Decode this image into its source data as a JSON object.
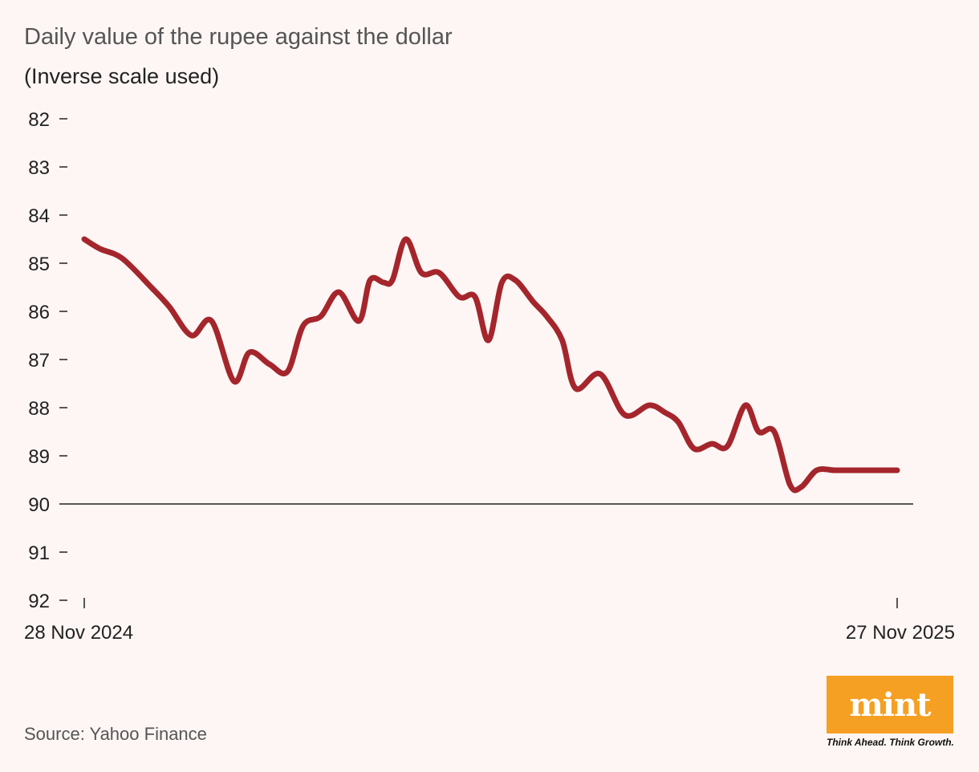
{
  "title": "Daily value of the rupee against the dollar",
  "subtitle": "(Inverse scale used)",
  "source": "Source: Yahoo Finance",
  "logo": {
    "word": "mint",
    "tagline": "Think Ahead. Think Growth."
  },
  "colors": {
    "line": "#a4262c",
    "background": "#fdf6f4",
    "logo": "#f5a023"
  },
  "chart_data": {
    "type": "line",
    "title": "Daily value of the rupee against the dollar",
    "ylabel": "",
    "xlabel": "",
    "y_inverted": true,
    "ylim": [
      82,
      92
    ],
    "yticks": [
      82,
      83,
      84,
      85,
      86,
      87,
      88,
      89,
      90,
      91,
      92
    ],
    "x_tick_labels": [
      "28 Nov 2024",
      "27 Nov 2025"
    ],
    "x_range": [
      "2024-11-28",
      "2025-11-27"
    ],
    "baseline": 90,
    "series": [
      {
        "x": [
          "2024-11-28",
          "2024-12-05",
          "2024-12-15",
          "2024-12-28",
          "2025-01-05",
          "2025-01-15",
          "2025-01-24",
          "2025-02-03",
          "2025-02-10",
          "2025-02-19",
          "2025-02-27",
          "2025-03-06",
          "2025-03-14",
          "2025-03-22",
          "2025-03-31",
          "2025-04-05",
          "2025-04-11",
          "2025-04-15",
          "2025-04-21",
          "2025-04-28",
          "2025-05-06",
          "2025-05-15",
          "2025-05-22",
          "2025-05-28",
          "2025-06-03",
          "2025-06-09",
          "2025-06-17",
          "2025-06-23",
          "2025-06-30",
          "2025-07-06",
          "2025-07-17",
          "2025-07-28",
          "2025-08-08",
          "2025-08-15",
          "2025-08-21",
          "2025-08-28",
          "2025-09-05",
          "2025-09-12",
          "2025-09-20",
          "2025-09-26",
          "2025-10-03",
          "2025-10-10",
          "2025-10-15",
          "2025-10-22",
          "2025-10-30",
          "2025-11-06",
          "2025-11-14",
          "2025-11-21",
          "2025-11-27"
        ],
        "y": [
          84.5,
          84.7,
          84.9,
          85.5,
          85.9,
          86.5,
          86.2,
          87.45,
          86.85,
          87.1,
          87.25,
          86.3,
          86.1,
          85.6,
          86.2,
          85.35,
          85.4,
          85.35,
          84.5,
          85.2,
          85.2,
          85.7,
          85.7,
          86.6,
          85.4,
          85.35,
          85.8,
          86.1,
          86.6,
          87.6,
          87.3,
          88.15,
          87.95,
          88.1,
          88.3,
          88.85,
          88.75,
          88.8,
          87.95,
          88.5,
          88.5,
          89.6,
          89.65,
          89.3,
          89.3,
          89.3,
          89.3,
          89.3,
          89.3
        ]
      }
    ]
  }
}
